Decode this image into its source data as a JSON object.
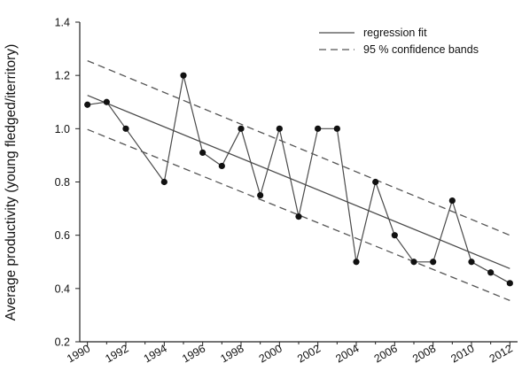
{
  "chart_data": {
    "type": "line",
    "title": "",
    "xlabel": "",
    "ylabel": "Average productivity (young fledged/iterritory)",
    "xlim": [
      1989.6,
      2012.4
    ],
    "ylim": [
      0.2,
      1.4
    ],
    "x_ticks": [
      1990,
      1992,
      1994,
      1996,
      1998,
      2000,
      2002,
      2004,
      2006,
      2008,
      2010,
      2012
    ],
    "x_tick_labels": [
      "1990",
      "1992",
      "1994",
      "1996",
      "1998",
      "2000",
      "2002",
      "2004",
      "2006",
      "2008",
      "2010",
      "2012"
    ],
    "y_ticks": [
      0.2,
      0.4,
      0.6,
      0.8,
      1.0,
      1.2,
      1.4
    ],
    "y_tick_labels": [
      "0.2",
      "0.4",
      "0.6",
      "0.8",
      "1.0",
      "1.2",
      "1.4"
    ],
    "grid": false,
    "legend_position": "top-right",
    "series": [
      {
        "type": "line-markers",
        "x": [
          1990,
          1991,
          1992,
          1994,
          1995,
          1996,
          1997,
          1998,
          1999,
          2000,
          2001,
          2002,
          2003,
          2004,
          2005,
          2006,
          2007,
          2008,
          2009,
          2010,
          2011,
          2012
        ],
        "values": [
          1.09,
          1.1,
          1.0,
          0.8,
          1.2,
          0.91,
          0.86,
          1.0,
          0.75,
          1.0,
          0.67,
          1.0,
          1.0,
          0.5,
          0.8,
          0.6,
          0.5,
          0.5,
          0.73,
          0.5,
          0.46,
          0.42
        ]
      },
      {
        "name": "regression fit",
        "type": "line",
        "style": "solid",
        "x": [
          1990,
          2012
        ],
        "values": [
          1.125,
          0.475
        ]
      },
      {
        "name": "95 % confidence bands",
        "type": "line",
        "style": "dashed",
        "x": [
          1990,
          2012
        ],
        "values": [
          1.255,
          0.6
        ]
      },
      {
        "name": "95 % confidence bands",
        "type": "line",
        "style": "dashed",
        "x": [
          1990,
          2012
        ],
        "values": [
          0.997,
          0.355
        ]
      }
    ],
    "legend": [
      {
        "label": "regression fit",
        "style": "solid"
      },
      {
        "label": "95 % confidence bands",
        "style": "dashed"
      }
    ],
    "colors": {
      "data": "#4a4a4a",
      "regression": "#4a4a4a",
      "confidence": "#555555",
      "axis": "#222222"
    }
  }
}
